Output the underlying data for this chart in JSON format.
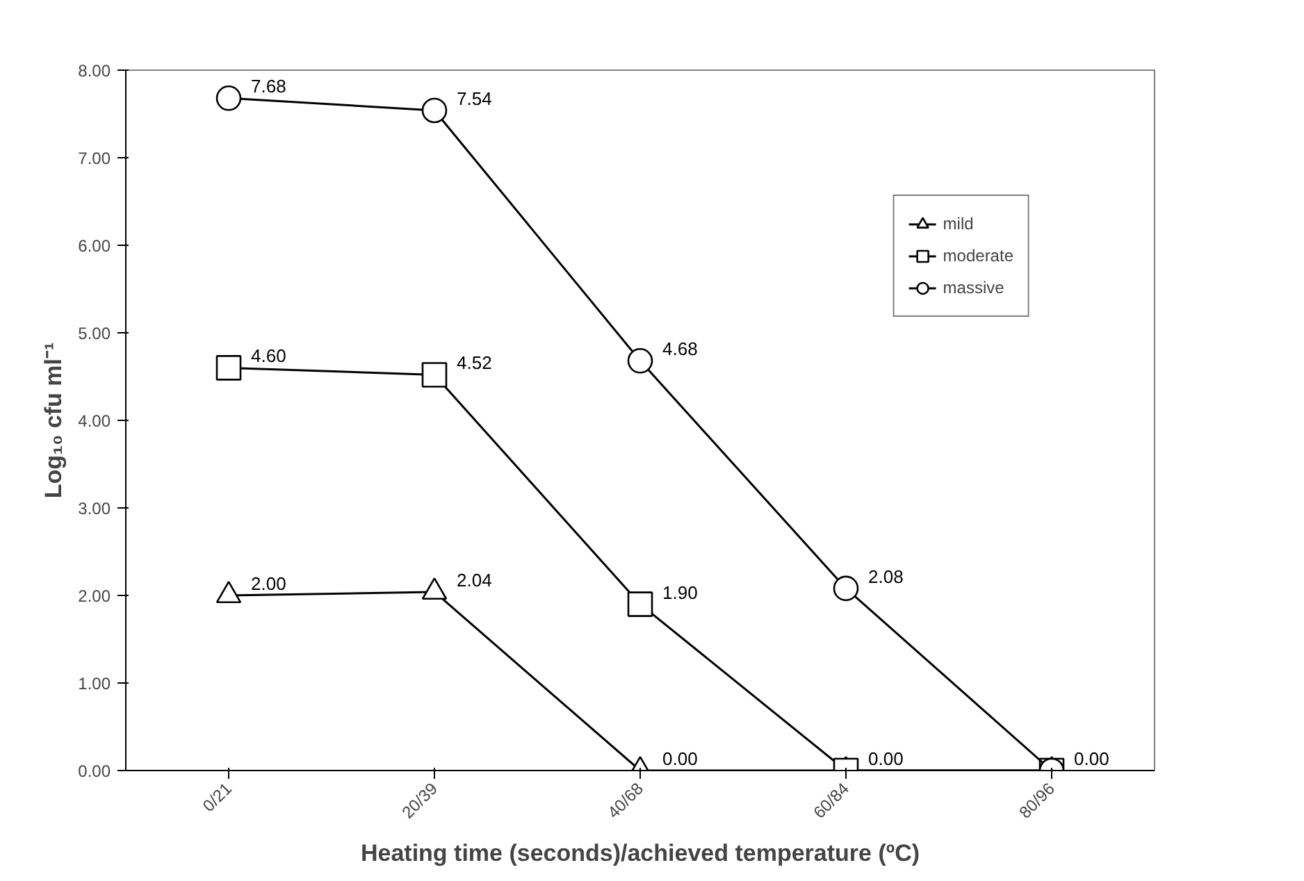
{
  "chart_data": {
    "type": "line",
    "xlabel": "Heating time (seconds)/achieved temperature (ºC)",
    "ylabel": "Log₁₀ cfu ml⁻¹",
    "categories": [
      "0/21",
      "20/39",
      "40/68",
      "60/84",
      "80/96"
    ],
    "series": [
      {
        "name": "mild",
        "color": "#000000",
        "marker": "triangle",
        "values": [
          2.0,
          2.04,
          0.0,
          0.0,
          0.0
        ],
        "value_labels": [
          "2.00",
          "2.04",
          "0.00",
          null,
          null
        ]
      },
      {
        "name": "moderate",
        "color": "#000000",
        "marker": "square",
        "values": [
          4.6,
          4.52,
          1.9,
          0.0,
          0.0
        ],
        "value_labels": [
          "4.60",
          "4.52",
          "1.90",
          "0.00",
          null
        ]
      },
      {
        "name": "massive",
        "color": "#000000",
        "marker": "circle",
        "values": [
          7.68,
          7.54,
          4.68,
          2.08,
          0.0
        ],
        "value_labels": [
          "7.68",
          "7.54",
          "4.68",
          "2.08",
          "0.00"
        ]
      }
    ],
    "ylim": [
      0,
      8
    ],
    "yticks": [
      {
        "value": 0,
        "label": "0.00"
      },
      {
        "value": 1,
        "label": "1.00"
      },
      {
        "value": 2,
        "label": "2.00"
      },
      {
        "value": 3,
        "label": "3.00"
      },
      {
        "value": 4,
        "label": "4.00"
      },
      {
        "value": 5,
        "label": "5.00"
      },
      {
        "value": 6,
        "label": "6.00"
      },
      {
        "value": 7,
        "label": "7.00"
      },
      {
        "value": 8,
        "label": "8.00"
      }
    ],
    "grid": false,
    "legend": "top right",
    "line_style": "solid"
  }
}
